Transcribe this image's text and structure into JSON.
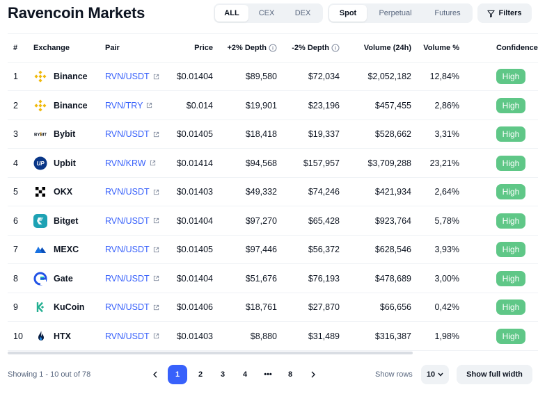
{
  "header": {
    "title": "Ravencoin Markets",
    "market_type_tabs": [
      "ALL",
      "CEX",
      "DEX"
    ],
    "market_type_active": "ALL",
    "product_tabs": [
      "Spot",
      "Perpetual",
      "Futures"
    ],
    "product_active": "Spot",
    "filters_label": "Filters"
  },
  "table": {
    "columns": {
      "num": "#",
      "exchange": "Exchange",
      "pair": "Pair",
      "price": "Price",
      "plus_depth": "+2% Depth",
      "minus_depth": "-2% Depth",
      "volume": "Volume (24h)",
      "volume_pct": "Volume %",
      "confidence": "Confidence"
    },
    "rows": [
      {
        "num": "1",
        "exchange": "Binance",
        "icon": "binance-icon",
        "pair": "RVN/USDT",
        "price": "$0.01404",
        "plus_depth": "$89,580",
        "minus_depth": "$72,034",
        "volume": "$2,052,182",
        "volume_pct": "12,84%",
        "confidence": "High"
      },
      {
        "num": "2",
        "exchange": "Binance",
        "icon": "binance-icon",
        "pair": "RVN/TRY",
        "price": "$0.014",
        "plus_depth": "$19,901",
        "minus_depth": "$23,196",
        "volume": "$457,455",
        "volume_pct": "2,86%",
        "confidence": "High"
      },
      {
        "num": "3",
        "exchange": "Bybit",
        "icon": "bybit-icon",
        "pair": "RVN/USDT",
        "price": "$0.01405",
        "plus_depth": "$18,418",
        "minus_depth": "$19,337",
        "volume": "$528,662",
        "volume_pct": "3,31%",
        "confidence": "High"
      },
      {
        "num": "4",
        "exchange": "Upbit",
        "icon": "upbit-icon",
        "pair": "RVN/KRW",
        "price": "$0.01414",
        "plus_depth": "$94,568",
        "minus_depth": "$157,957",
        "volume": "$3,709,288",
        "volume_pct": "23,21%",
        "confidence": "High"
      },
      {
        "num": "5",
        "exchange": "OKX",
        "icon": "okx-icon",
        "pair": "RVN/USDT",
        "price": "$0.01403",
        "plus_depth": "$49,332",
        "minus_depth": "$74,246",
        "volume": "$421,934",
        "volume_pct": "2,64%",
        "confidence": "High"
      },
      {
        "num": "6",
        "exchange": "Bitget",
        "icon": "bitget-icon",
        "pair": "RVN/USDT",
        "price": "$0.01404",
        "plus_depth": "$97,270",
        "minus_depth": "$65,428",
        "volume": "$923,764",
        "volume_pct": "5,78%",
        "confidence": "High"
      },
      {
        "num": "7",
        "exchange": "MEXC",
        "icon": "mexc-icon",
        "pair": "RVN/USDT",
        "price": "$0.01405",
        "plus_depth": "$97,446",
        "minus_depth": "$56,372",
        "volume": "$628,546",
        "volume_pct": "3,93%",
        "confidence": "High"
      },
      {
        "num": "8",
        "exchange": "Gate",
        "icon": "gate-icon",
        "pair": "RVN/USDT",
        "price": "$0.01404",
        "plus_depth": "$51,676",
        "minus_depth": "$76,193",
        "volume": "$478,689",
        "volume_pct": "3,00%",
        "confidence": "High"
      },
      {
        "num": "9",
        "exchange": "KuCoin",
        "icon": "kucoin-icon",
        "pair": "RVN/USDT",
        "price": "$0.01406",
        "plus_depth": "$18,761",
        "minus_depth": "$27,870",
        "volume": "$66,656",
        "volume_pct": "0,42%",
        "confidence": "High"
      },
      {
        "num": "10",
        "exchange": "HTX",
        "icon": "htx-icon",
        "pair": "RVN/USDT",
        "price": "$0.01403",
        "plus_depth": "$8,880",
        "minus_depth": "$31,489",
        "volume": "$316,387",
        "volume_pct": "1,98%",
        "confidence": "High"
      }
    ]
  },
  "footer": {
    "showing": "Showing 1 - 10 out of 78",
    "pages": [
      "1",
      "2",
      "3",
      "4",
      "•••",
      "8"
    ],
    "active_page": "1",
    "show_rows_label": "Show rows",
    "rows_value": "10",
    "full_width_label": "Show full width"
  },
  "colors": {
    "accent": "#3861fb",
    "confidence_high": "#5fc787",
    "muted_text": "#58667e",
    "pill_bg": "#eff2f5"
  }
}
